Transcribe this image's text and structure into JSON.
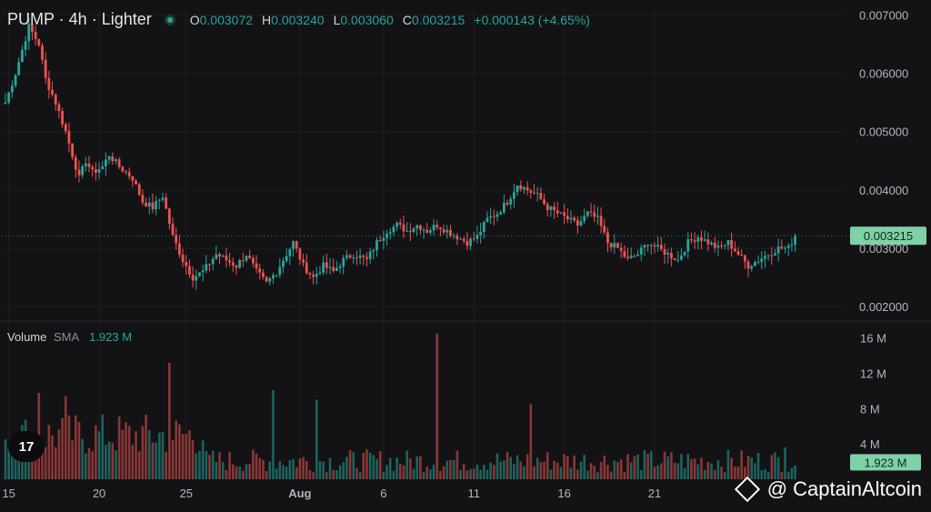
{
  "header": {
    "symbol": "PUMP · 4h · Lighter",
    "o_label": "O",
    "o_value": "0.003072",
    "h_label": "H",
    "h_value": "0.003240",
    "l_label": "L",
    "l_value": "0.003060",
    "c_label": "C",
    "c_value": "0.003215",
    "change": "+0.000143 (+4.65%)"
  },
  "volume_legend": {
    "title": "Volume",
    "sub": "SMA",
    "value": "1.923 M"
  },
  "watermark": {
    "text": "@ CaptainAltcoin",
    "icon": "binance-icon"
  },
  "colors": {
    "background": "#131316",
    "up": "#26a69a",
    "down": "#ef5350",
    "grid": "#1e1f24",
    "axis_text": "#b2b5be"
  },
  "chart_data": [
    {
      "type": "candlestick",
      "title": "PUMP · 4h · Lighter",
      "ylim": [
        0.0018,
        0.0071
      ],
      "y_ticks": [
        "0.007000",
        "0.006000",
        "0.005000",
        "0.004000",
        "0.003000",
        "0.002000"
      ],
      "y_tick_values": [
        0.007,
        0.006,
        0.005,
        0.004,
        0.003,
        0.002
      ],
      "x_ticks": [
        "15",
        "20",
        "25",
        "Aug",
        "6",
        "11",
        "16",
        "21"
      ],
      "x_tick_index": [
        1,
        28,
        54,
        88,
        113,
        140,
        167,
        194
      ],
      "last_price_label": "0.003215",
      "last_price": 0.003215,
      "close_anchors": [
        [
          0,
          0.0055
        ],
        [
          3,
          0.006
        ],
        [
          5,
          0.0064
        ],
        [
          7,
          0.0068
        ],
        [
          10,
          0.0065
        ],
        [
          12,
          0.0059
        ],
        [
          15,
          0.0055
        ],
        [
          18,
          0.005
        ],
        [
          20,
          0.0046
        ],
        [
          22,
          0.0042
        ],
        [
          24,
          0.0045
        ],
        [
          26,
          0.0043
        ],
        [
          29,
          0.0044
        ],
        [
          31,
          0.0046
        ],
        [
          34,
          0.0044
        ],
        [
          38,
          0.0042
        ],
        [
          41,
          0.0038
        ],
        [
          44,
          0.0037
        ],
        [
          47,
          0.0039
        ],
        [
          50,
          0.0032
        ],
        [
          53,
          0.0028
        ],
        [
          56,
          0.0025
        ],
        [
          59,
          0.0026
        ],
        [
          63,
          0.0029
        ],
        [
          66,
          0.0028
        ],
        [
          69,
          0.0027
        ],
        [
          72,
          0.0029
        ],
        [
          75,
          0.0026
        ],
        [
          78,
          0.0024
        ],
        [
          81,
          0.0026
        ],
        [
          84,
          0.0029
        ],
        [
          86,
          0.0031
        ],
        [
          89,
          0.0027
        ],
        [
          92,
          0.0025
        ],
        [
          95,
          0.0027
        ],
        [
          98,
          0.0026
        ],
        [
          101,
          0.0028
        ],
        [
          104,
          0.0029
        ],
        [
          108,
          0.0028
        ],
        [
          111,
          0.0031
        ],
        [
          114,
          0.0033
        ],
        [
          117,
          0.0034
        ],
        [
          120,
          0.0033
        ],
        [
          123,
          0.0034
        ],
        [
          126,
          0.0033
        ],
        [
          129,
          0.0034
        ],
        [
          132,
          0.0033
        ],
        [
          135,
          0.0032
        ],
        [
          138,
          0.0031
        ],
        [
          141,
          0.0032
        ],
        [
          144,
          0.0035
        ],
        [
          147,
          0.0036
        ],
        [
          150,
          0.0038
        ],
        [
          153,
          0.0041
        ],
        [
          156,
          0.004
        ],
        [
          159,
          0.0039
        ],
        [
          162,
          0.0037
        ],
        [
          165,
          0.0036
        ],
        [
          168,
          0.0035
        ],
        [
          171,
          0.0034
        ],
        [
          174,
          0.0036
        ],
        [
          177,
          0.0035
        ],
        [
          180,
          0.0031
        ],
        [
          183,
          0.003
        ],
        [
          186,
          0.0028
        ],
        [
          189,
          0.0029
        ],
        [
          192,
          0.0031
        ],
        [
          195,
          0.003
        ],
        [
          198,
          0.0029
        ],
        [
          201,
          0.0028
        ],
        [
          204,
          0.0031
        ],
        [
          207,
          0.0032
        ],
        [
          210,
          0.0031
        ],
        [
          213,
          0.003
        ],
        [
          216,
          0.0031
        ],
        [
          219,
          0.0029
        ],
        [
          222,
          0.0027
        ],
        [
          225,
          0.0028
        ],
        [
          228,
          0.0029
        ],
        [
          231,
          0.003
        ],
        [
          234,
          0.003
        ],
        [
          236,
          0.003215
        ]
      ]
    },
    {
      "type": "bar",
      "title": "Volume SMA",
      "ylim": [
        0,
        17
      ],
      "y_ticks": [
        "16 M",
        "12 M",
        "8 M",
        "4 M"
      ],
      "y_tick_values": [
        16,
        12,
        8,
        4
      ],
      "last_value_label": "1.923 M",
      "sma_value": 1.923,
      "spikes": [
        [
          49,
          13.2
        ],
        [
          80,
          10.1
        ],
        [
          129,
          16.5
        ],
        [
          157,
          8.5
        ],
        [
          93,
          9.0
        ],
        [
          10,
          9.8
        ],
        [
          18,
          9.4
        ],
        [
          233,
          3.6
        ]
      ]
    }
  ]
}
